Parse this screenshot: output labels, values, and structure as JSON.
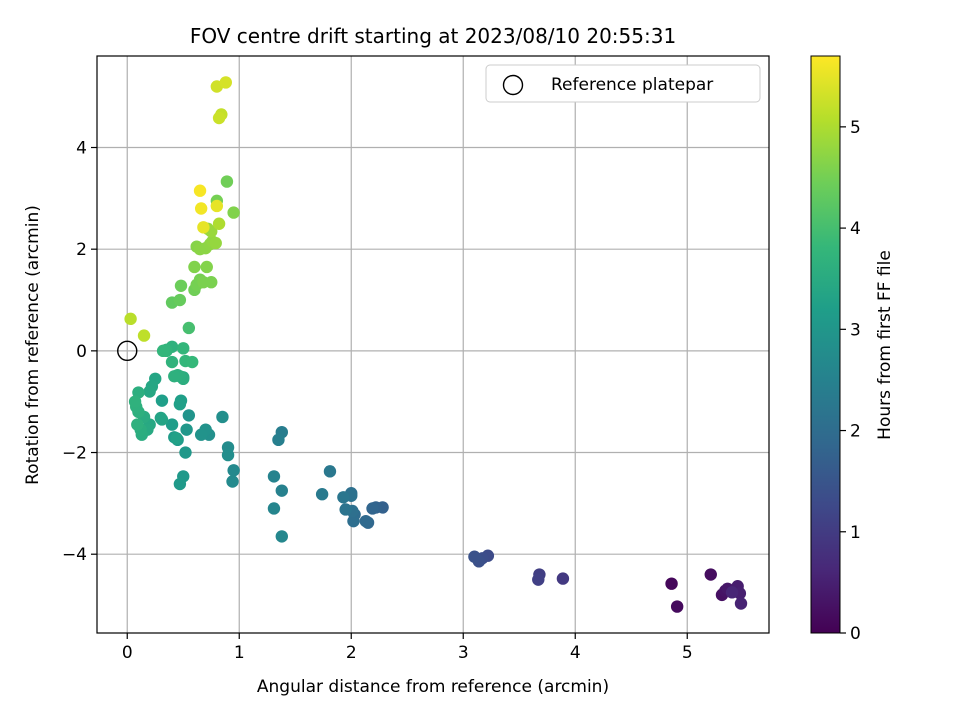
{
  "chart_data": {
    "type": "scatter",
    "title": "FOV centre drift starting at 2023/08/10 20:55:31",
    "xlabel": "Angular distance from reference (arcmin)",
    "ylabel": "Rotation from reference (arcmin)",
    "xlim": [
      -0.27,
      5.73
    ],
    "ylim": [
      -5.55,
      5.8
    ],
    "xticks": [
      0,
      1,
      2,
      3,
      4,
      5
    ],
    "yticks": [
      -4,
      -2,
      0,
      2,
      4
    ],
    "grid": true,
    "legend": {
      "position": "top-right",
      "entries": [
        "Reference platepar"
      ]
    },
    "reference_point": {
      "x": 0,
      "y": 0
    },
    "colorbar": {
      "label": "Hours from first FF file",
      "range": [
        0,
        5.7
      ],
      "ticks": [
        0,
        1,
        2,
        3,
        4,
        5
      ],
      "colormap": "viridis"
    },
    "points": [
      {
        "x": 4.86,
        "y": -4.58,
        "c": 0.1
      },
      {
        "x": 4.91,
        "y": -5.03,
        "c": 0.15
      },
      {
        "x": 5.21,
        "y": -4.4,
        "c": 0.2
      },
      {
        "x": 5.31,
        "y": -4.8,
        "c": 0.25
      },
      {
        "x": 5.34,
        "y": -4.72,
        "c": 0.3
      },
      {
        "x": 5.36,
        "y": -4.68,
        "c": 0.35
      },
      {
        "x": 5.43,
        "y": -4.7,
        "c": 0.4
      },
      {
        "x": 5.45,
        "y": -4.63,
        "c": 0.45
      },
      {
        "x": 5.47,
        "y": -4.77,
        "c": 0.5
      },
      {
        "x": 5.48,
        "y": -4.97,
        "c": 0.55
      },
      {
        "x": 5.4,
        "y": -4.75,
        "c": 0.6
      },
      {
        "x": 3.89,
        "y": -4.48,
        "c": 0.95
      },
      {
        "x": 3.68,
        "y": -4.4,
        "c": 1.05
      },
      {
        "x": 3.67,
        "y": -4.5,
        "c": 1.1
      },
      {
        "x": 3.22,
        "y": -4.03,
        "c": 1.3
      },
      {
        "x": 3.17,
        "y": -4.08,
        "c": 1.35
      },
      {
        "x": 3.14,
        "y": -4.14,
        "c": 1.4
      },
      {
        "x": 3.1,
        "y": -4.05,
        "c": 1.45
      },
      {
        "x": 2.28,
        "y": -3.08,
        "c": 1.75
      },
      {
        "x": 2.22,
        "y": -3.08,
        "c": 1.8
      },
      {
        "x": 2.19,
        "y": -3.1,
        "c": 1.85
      },
      {
        "x": 2.15,
        "y": -3.38,
        "c": 1.9
      },
      {
        "x": 2.13,
        "y": -3.35,
        "c": 1.95
      },
      {
        "x": 2.03,
        "y": -3.22,
        "c": 2.0
      },
      {
        "x": 2.02,
        "y": -3.35,
        "c": 2.05
      },
      {
        "x": 2.01,
        "y": -3.15,
        "c": 2.1
      },
      {
        "x": 2.0,
        "y": -2.8,
        "c": 2.1
      },
      {
        "x": 2.0,
        "y": -2.85,
        "c": 2.15
      },
      {
        "x": 1.95,
        "y": -3.12,
        "c": 2.2
      },
      {
        "x": 1.93,
        "y": -2.88,
        "c": 2.25
      },
      {
        "x": 1.81,
        "y": -2.37,
        "c": 2.3
      },
      {
        "x": 1.74,
        "y": -2.82,
        "c": 2.35
      },
      {
        "x": 1.38,
        "y": -1.6,
        "c": 2.4
      },
      {
        "x": 1.35,
        "y": -1.75,
        "c": 2.45
      },
      {
        "x": 1.38,
        "y": -2.75,
        "c": 2.5
      },
      {
        "x": 1.31,
        "y": -2.47,
        "c": 2.55
      },
      {
        "x": 1.31,
        "y": -3.1,
        "c": 2.6
      },
      {
        "x": 1.38,
        "y": -3.65,
        "c": 2.65
      },
      {
        "x": 0.95,
        "y": -2.35,
        "c": 2.7
      },
      {
        "x": 0.94,
        "y": -2.57,
        "c": 2.72
      },
      {
        "x": 0.9,
        "y": -1.9,
        "c": 2.75
      },
      {
        "x": 0.9,
        "y": -2.05,
        "c": 2.8
      },
      {
        "x": 0.85,
        "y": -1.3,
        "c": 2.82
      },
      {
        "x": 0.73,
        "y": -1.65,
        "c": 2.85
      },
      {
        "x": 0.7,
        "y": -1.55,
        "c": 2.9
      },
      {
        "x": 0.66,
        "y": -1.65,
        "c": 2.92
      },
      {
        "x": 0.55,
        "y": -1.27,
        "c": 2.95
      },
      {
        "x": 0.53,
        "y": -1.55,
        "c": 3.0
      },
      {
        "x": 0.52,
        "y": -2.0,
        "c": 3.02
      },
      {
        "x": 0.5,
        "y": -2.47,
        "c": 3.05
      },
      {
        "x": 0.47,
        "y": -2.62,
        "c": 3.08
      },
      {
        "x": 0.45,
        "y": -1.75,
        "c": 3.1
      },
      {
        "x": 0.42,
        "y": -1.7,
        "c": 3.12
      },
      {
        "x": 0.4,
        "y": -1.45,
        "c": 3.15
      },
      {
        "x": 0.31,
        "y": -0.98,
        "c": 3.18
      },
      {
        "x": 0.48,
        "y": -0.98,
        "c": 3.2
      },
      {
        "x": 0.47,
        "y": -1.05,
        "c": 3.22
      },
      {
        "x": 0.44,
        "y": -1.72,
        "c": 3.25
      },
      {
        "x": 0.3,
        "y": -1.32,
        "c": 3.3
      },
      {
        "x": 0.31,
        "y": -1.35,
        "c": 3.32
      },
      {
        "x": 0.25,
        "y": -0.55,
        "c": 3.35
      },
      {
        "x": 0.22,
        "y": -0.7,
        "c": 3.38
      },
      {
        "x": 0.2,
        "y": -0.8,
        "c": 3.4
      },
      {
        "x": 0.2,
        "y": -1.45,
        "c": 3.42
      },
      {
        "x": 0.18,
        "y": -1.55,
        "c": 3.45
      },
      {
        "x": 0.15,
        "y": -1.3,
        "c": 3.5
      },
      {
        "x": 0.13,
        "y": -1.65,
        "c": 3.52
      },
      {
        "x": 0.12,
        "y": -1.55,
        "c": 3.55
      },
      {
        "x": 0.1,
        "y": -0.82,
        "c": 3.58
      },
      {
        "x": 0.1,
        "y": -1.2,
        "c": 3.6
      },
      {
        "x": 0.09,
        "y": -1.45,
        "c": 3.62
      },
      {
        "x": 0.08,
        "y": -1.1,
        "c": 3.62
      },
      {
        "x": 0.07,
        "y": -1.0,
        "c": 3.65
      },
      {
        "x": 0.5,
        "y": -0.52,
        "c": 3.5
      },
      {
        "x": 0.5,
        "y": -0.55,
        "c": 3.55
      },
      {
        "x": 0.47,
        "y": -0.5,
        "c": 3.58
      },
      {
        "x": 0.45,
        "y": -0.48,
        "c": 3.6
      },
      {
        "x": 0.42,
        "y": -0.5,
        "c": 3.62
      },
      {
        "x": 0.4,
        "y": 0.08,
        "c": 3.65
      },
      {
        "x": 0.4,
        "y": -0.22,
        "c": 3.68
      },
      {
        "x": 0.35,
        "y": 0.02,
        "c": 3.7
      },
      {
        "x": 0.35,
        "y": 0.0,
        "c": 3.72
      },
      {
        "x": 0.32,
        "y": 0.0,
        "c": 3.74
      },
      {
        "x": 0.5,
        "y": 0.05,
        "c": 3.75
      },
      {
        "x": 0.52,
        "y": -0.2,
        "c": 3.78
      },
      {
        "x": 0.58,
        "y": -0.22,
        "c": 3.8
      },
      {
        "x": 0.55,
        "y": 0.45,
        "c": 4.0
      },
      {
        "x": 0.4,
        "y": 0.95,
        "c": 4.3
      },
      {
        "x": 0.47,
        "y": 1.0,
        "c": 4.35
      },
      {
        "x": 0.48,
        "y": 1.28,
        "c": 4.4
      },
      {
        "x": 0.6,
        "y": 1.2,
        "c": 4.45
      },
      {
        "x": 0.62,
        "y": 1.3,
        "c": 4.5
      },
      {
        "x": 0.65,
        "y": 1.4,
        "c": 4.5
      },
      {
        "x": 0.68,
        "y": 1.35,
        "c": 4.55
      },
      {
        "x": 0.75,
        "y": 1.35,
        "c": 4.55
      },
      {
        "x": 0.6,
        "y": 1.65,
        "c": 4.6
      },
      {
        "x": 0.71,
        "y": 1.65,
        "c": 4.62
      },
      {
        "x": 0.62,
        "y": 2.05,
        "c": 4.65
      },
      {
        "x": 0.65,
        "y": 2.0,
        "c": 4.68
      },
      {
        "x": 0.7,
        "y": 2.02,
        "c": 4.7
      },
      {
        "x": 0.74,
        "y": 2.1,
        "c": 4.72
      },
      {
        "x": 0.76,
        "y": 2.15,
        "c": 4.75
      },
      {
        "x": 0.79,
        "y": 2.12,
        "c": 4.78
      },
      {
        "x": 0.72,
        "y": 2.4,
        "c": 4.8
      },
      {
        "x": 0.75,
        "y": 2.35,
        "c": 4.82
      },
      {
        "x": 0.8,
        "y": 2.95,
        "c": 4.5
      },
      {
        "x": 0.89,
        "y": 3.33,
        "c": 4.45
      },
      {
        "x": 0.95,
        "y": 2.72,
        "c": 4.6
      },
      {
        "x": 0.82,
        "y": 2.5,
        "c": 5.0
      },
      {
        "x": 0.03,
        "y": 0.63,
        "c": 5.1
      },
      {
        "x": 0.15,
        "y": 0.3,
        "c": 5.15
      },
      {
        "x": 0.68,
        "y": 2.43,
        "c": 5.5
      },
      {
        "x": 0.66,
        "y": 2.8,
        "c": 5.6
      },
      {
        "x": 0.65,
        "y": 3.15,
        "c": 5.65
      },
      {
        "x": 0.8,
        "y": 2.85,
        "c": 5.5
      },
      {
        "x": 0.8,
        "y": 5.2,
        "c": 5.3
      },
      {
        "x": 0.88,
        "y": 5.28,
        "c": 5.35
      },
      {
        "x": 0.84,
        "y": 4.65,
        "c": 5.2
      },
      {
        "x": 0.82,
        "y": 4.58,
        "c": 5.25
      }
    ]
  }
}
